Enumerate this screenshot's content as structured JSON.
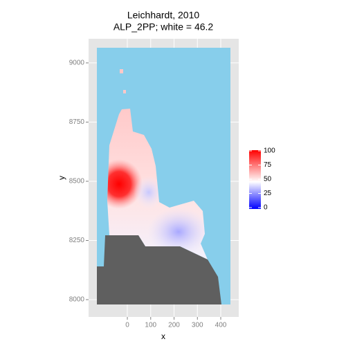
{
  "chart_data": {
    "type": "raster",
    "title": "Leichhardt, 2010",
    "subtitle": "ALP_2PP; white = 46.2",
    "x_label": "x",
    "y_label": "y",
    "xlim": [
      -166,
      477
    ],
    "ylim": [
      7927,
      9102
    ],
    "xticks": [
      0,
      100,
      200,
      300,
      400
    ],
    "yticks": [
      8000,
      8250,
      8500,
      8750,
      9000
    ],
    "grid": true,
    "legend": {
      "ticks": [
        0,
        25,
        50,
        75,
        100
      ],
      "limits": [
        0,
        100
      ],
      "low_color": "#0000ff",
      "mid_color": "#ffffff",
      "high_color": "#ff0000",
      "midpoint": 46.2
    }
  }
}
